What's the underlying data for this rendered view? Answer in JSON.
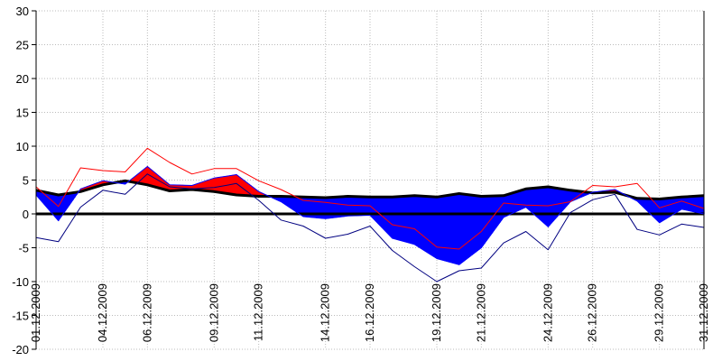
{
  "chart_data": {
    "type": "area",
    "title": "",
    "xlabel": "",
    "ylabel": "",
    "ylim": [
      -20,
      30
    ],
    "yticks": [
      30,
      25,
      20,
      15,
      10,
      5,
      0,
      -5,
      -10,
      -15,
      -20
    ],
    "grid": true,
    "legend": "none",
    "x_tick_labels": [
      "01.12.2009",
      "04.12.2009",
      "06.12.2009",
      "09.12.2009",
      "11.12.2009",
      "14.12.2009",
      "16.12.2009",
      "19.12.2009",
      "21.12.2009",
      "24.12.2009",
      "26.12.2009",
      "29.12.2009",
      "31.12.2009"
    ],
    "x_tick_day_index": [
      0,
      3,
      5,
      8,
      10,
      13,
      15,
      18,
      20,
      23,
      25,
      28,
      30
    ],
    "x": [
      "01.12.2009",
      "02.12.2009",
      "03.12.2009",
      "04.12.2009",
      "05.12.2009",
      "06.12.2009",
      "07.12.2009",
      "08.12.2009",
      "09.12.2009",
      "10.12.2009",
      "11.12.2009",
      "12.12.2009",
      "13.12.2009",
      "14.12.2009",
      "15.12.2009",
      "16.12.2009",
      "17.12.2009",
      "18.12.2009",
      "19.12.2009",
      "20.12.2009",
      "21.12.2009",
      "22.12.2009",
      "23.12.2009",
      "24.12.2009",
      "25.12.2009",
      "26.12.2009",
      "27.12.2009",
      "28.12.2009",
      "29.12.2009",
      "30.12.2009",
      "31.12.2009"
    ],
    "series": [
      {
        "role": "mean",
        "values": [
          3.5,
          2.8,
          3.3,
          4.3,
          4.9,
          4.3,
          3.4,
          3.6,
          3.3,
          2.8,
          2.6,
          2.6,
          2.5,
          2.4,
          2.6,
          2.5,
          2.5,
          2.7,
          2.5,
          3.0,
          2.6,
          2.7,
          3.7,
          4.0,
          3.5,
          3.1,
          3.2,
          2.3,
          2.2,
          2.5,
          2.7
        ],
        "color": "#000000"
      },
      {
        "role": "mean_observed",
        "values": [
          2.8,
          -1.0,
          3.7,
          4.9,
          4.4,
          7.0,
          4.3,
          4.2,
          5.3,
          5.8,
          3.3,
          1.8,
          -0.4,
          -0.7,
          -0.3,
          -0.2,
          -3.6,
          -4.5,
          -6.6,
          -7.5,
          -5.0,
          -0.5,
          1.0,
          -1.9,
          1.8,
          3.2,
          3.6,
          1.9,
          -1.3,
          0.7,
          0.0
        ],
        "color": "#0000ff"
      },
      {
        "role": "max_observed",
        "values": [
          4.0,
          1.1,
          6.8,
          6.4,
          6.2,
          9.7,
          7.6,
          5.9,
          6.7,
          6.7,
          4.9,
          3.6,
          2.0,
          1.7,
          1.3,
          1.2,
          -1.6,
          -2.2,
          -4.9,
          -5.2,
          -2.6,
          1.6,
          1.3,
          1.2,
          1.8,
          4.2,
          4.0,
          4.5,
          0.9,
          1.9,
          0.8
        ],
        "color": "#ff0000"
      },
      {
        "role": "min_observed",
        "values": [
          -3.5,
          -4.1,
          1.0,
          3.5,
          2.9,
          5.9,
          4.0,
          3.7,
          3.9,
          4.5,
          2.0,
          -0.9,
          -1.8,
          -3.6,
          -3.0,
          -1.8,
          -5.4,
          -7.8,
          -10.0,
          -8.4,
          -8.0,
          -4.3,
          -2.6,
          -5.3,
          0.2,
          2.1,
          2.9,
          -2.3,
          -3.1,
          -1.5,
          -2.0
        ],
        "color": "#000080"
      }
    ],
    "fill_above_mean_color": "#ff0000",
    "fill_below_mean_color": "#0000ff",
    "zero_line_color": "#000000"
  }
}
